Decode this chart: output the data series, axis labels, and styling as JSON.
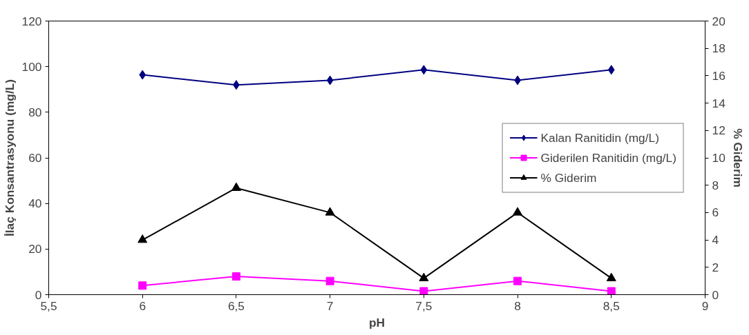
{
  "chart_data": {
    "type": "line",
    "xlabel": "pH",
    "ylabel": "İlaç Konsantrasyonu (mg/L)",
    "y2label": "% Giderim",
    "x": [
      6,
      6.5,
      7,
      7.5,
      8,
      8.5
    ],
    "series": [
      {
        "name": "Kalan Ranitidin (mg/L)",
        "color": "#000080",
        "marker": "diamond",
        "values": [
          96.4,
          92,
          94,
          98.6,
          94,
          98.6
        ]
      },
      {
        "name": "Giderilen Ranitidin (mg/L)",
        "color": "#ff00ff",
        "marker": "square",
        "values": [
          4,
          8,
          6,
          1.5,
          6,
          1.5
        ]
      },
      {
        "name": "% Giderim",
        "color": "#000000",
        "marker": "triangle",
        "axis": "y2",
        "values": [
          4,
          7.8,
          6,
          1.2,
          6,
          1.2
        ]
      }
    ],
    "xlim": [
      5.5,
      9
    ],
    "xticks": [
      {
        "value": 5.5,
        "label": "5,5"
      },
      6,
      {
        "value": 6.5,
        "label": "6,5"
      },
      7,
      {
        "value": 7.5,
        "label": "7,5"
      },
      8,
      {
        "value": 8.5,
        "label": "8,5"
      },
      9
    ],
    "ylim": [
      0,
      120
    ],
    "yticks": [
      0,
      20,
      40,
      60,
      80,
      100,
      120
    ],
    "y2lim": [
      0,
      20
    ],
    "y2ticks": [
      0,
      2,
      4,
      6,
      8,
      10,
      12,
      14,
      16,
      18,
      20
    ],
    "grid": false,
    "legend": "right",
    "line_style": "solid"
  }
}
